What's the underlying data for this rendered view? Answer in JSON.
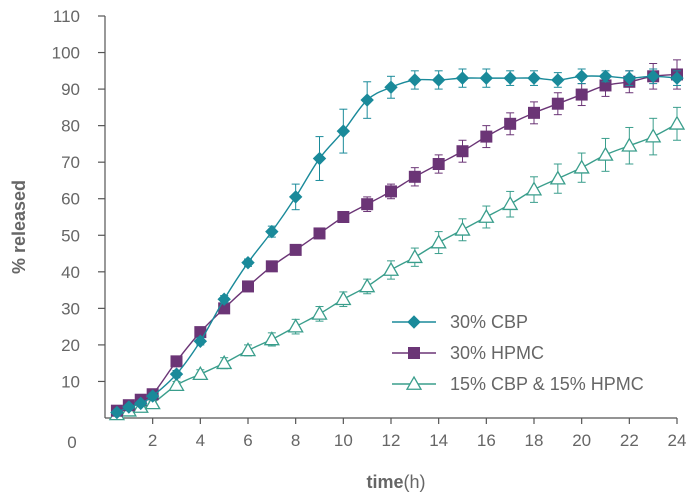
{
  "chart_data": {
    "type": "line",
    "xlabel_bold": "time",
    "xlabel_unit": "(h)",
    "ylabel": "% released",
    "xlim": [
      0,
      24
    ],
    "ylim": [
      0,
      110
    ],
    "x_ticks": [
      0,
      2,
      4,
      6,
      8,
      10,
      12,
      14,
      16,
      18,
      20,
      22,
      24
    ],
    "y_ticks": [
      10,
      20,
      30,
      40,
      50,
      60,
      70,
      80,
      90,
      100,
      110
    ],
    "grid": false,
    "legend_position": "lower-right",
    "series": [
      {
        "name": "30% CBP",
        "marker": "diamond",
        "color": "#1A8A9A",
        "points": [
          {
            "x": 0.5,
            "y": 1.5,
            "err": 0.5
          },
          {
            "x": 1,
            "y": 3,
            "err": 0.6
          },
          {
            "x": 1.5,
            "y": 4,
            "err": 0.6
          },
          {
            "x": 2,
            "y": 6,
            "err": 0.8
          },
          {
            "x": 3,
            "y": 12,
            "err": 1
          },
          {
            "x": 4,
            "y": 21,
            "err": 1
          },
          {
            "x": 5,
            "y": 32.5,
            "err": 1
          },
          {
            "x": 6,
            "y": 42.5,
            "err": 1
          },
          {
            "x": 7,
            "y": 51,
            "err": 1.5
          },
          {
            "x": 8,
            "y": 60.5,
            "err": 3.5
          },
          {
            "x": 9,
            "y": 71,
            "err": 6
          },
          {
            "x": 10,
            "y": 78.5,
            "err": 6
          },
          {
            "x": 11,
            "y": 87,
            "err": 5
          },
          {
            "x": 12,
            "y": 90.5,
            "err": 3
          },
          {
            "x": 13,
            "y": 92.5,
            "err": 2.5
          },
          {
            "x": 14,
            "y": 92.5,
            "err": 2.5
          },
          {
            "x": 15,
            "y": 93,
            "err": 2.5
          },
          {
            "x": 16,
            "y": 93,
            "err": 2.5
          },
          {
            "x": 17,
            "y": 93,
            "err": 2
          },
          {
            "x": 18,
            "y": 93,
            "err": 2
          },
          {
            "x": 19,
            "y": 92.5,
            "err": 2
          },
          {
            "x": 20,
            "y": 93.5,
            "err": 2
          },
          {
            "x": 21,
            "y": 93.5,
            "err": 1.5
          },
          {
            "x": 22,
            "y": 93,
            "err": 2
          },
          {
            "x": 23,
            "y": 93.5,
            "err": 2
          },
          {
            "x": 24,
            "y": 93,
            "err": 2
          }
        ]
      },
      {
        "name": "30% HPMC",
        "marker": "square",
        "color": "#6B3576",
        "points": [
          {
            "x": 0.5,
            "y": 2,
            "err": 0.5
          },
          {
            "x": 1,
            "y": 3.5,
            "err": 0.6
          },
          {
            "x": 1.5,
            "y": 5,
            "err": 0.8
          },
          {
            "x": 2,
            "y": 6.5,
            "err": 1
          },
          {
            "x": 3,
            "y": 15.5,
            "err": 1
          },
          {
            "x": 4,
            "y": 23.5,
            "err": 1
          },
          {
            "x": 5,
            "y": 30,
            "err": 1
          },
          {
            "x": 6,
            "y": 36,
            "err": 1
          },
          {
            "x": 7,
            "y": 41.5,
            "err": 1
          },
          {
            "x": 8,
            "y": 46,
            "err": 1
          },
          {
            "x": 9,
            "y": 50.5,
            "err": 1
          },
          {
            "x": 10,
            "y": 55,
            "err": 1.5
          },
          {
            "x": 11,
            "y": 58.5,
            "err": 2
          },
          {
            "x": 12,
            "y": 62,
            "err": 2
          },
          {
            "x": 13,
            "y": 66,
            "err": 2.5
          },
          {
            "x": 14,
            "y": 69.5,
            "err": 2.5
          },
          {
            "x": 15,
            "y": 73,
            "err": 3
          },
          {
            "x": 16,
            "y": 77,
            "err": 3
          },
          {
            "x": 17,
            "y": 80.5,
            "err": 3
          },
          {
            "x": 18,
            "y": 83.5,
            "err": 3
          },
          {
            "x": 19,
            "y": 86,
            "err": 3
          },
          {
            "x": 20,
            "y": 88.5,
            "err": 3
          },
          {
            "x": 21,
            "y": 91,
            "err": 3
          },
          {
            "x": 22,
            "y": 92,
            "err": 3
          },
          {
            "x": 23,
            "y": 93.5,
            "err": 3.5
          },
          {
            "x": 24,
            "y": 94,
            "err": 4
          }
        ]
      },
      {
        "name": "15% CBP & 15% HPMC",
        "marker": "triangle-open",
        "color": "#3A9E8C",
        "points": [
          {
            "x": 0.5,
            "y": 1,
            "err": 0.5
          },
          {
            "x": 1,
            "y": 2,
            "err": 0.5
          },
          {
            "x": 1.5,
            "y": 3,
            "err": 0.6
          },
          {
            "x": 2,
            "y": 4,
            "err": 0.6
          },
          {
            "x": 3,
            "y": 9,
            "err": 1
          },
          {
            "x": 4,
            "y": 12,
            "err": 1.2
          },
          {
            "x": 5,
            "y": 15,
            "err": 1.5
          },
          {
            "x": 6,
            "y": 18.5,
            "err": 1.5
          },
          {
            "x": 7,
            "y": 21.5,
            "err": 1.8
          },
          {
            "x": 8,
            "y": 25,
            "err": 2
          },
          {
            "x": 9,
            "y": 28.5,
            "err": 2
          },
          {
            "x": 10,
            "y": 32.5,
            "err": 2
          },
          {
            "x": 11,
            "y": 36,
            "err": 2
          },
          {
            "x": 12,
            "y": 40.5,
            "err": 2.5
          },
          {
            "x": 13,
            "y": 44,
            "err": 2.5
          },
          {
            "x": 14,
            "y": 48,
            "err": 3
          },
          {
            "x": 15,
            "y": 51.5,
            "err": 3
          },
          {
            "x": 16,
            "y": 55,
            "err": 3
          },
          {
            "x": 17,
            "y": 58.5,
            "err": 3.5
          },
          {
            "x": 18,
            "y": 62.5,
            "err": 3.5
          },
          {
            "x": 19,
            "y": 65.5,
            "err": 4
          },
          {
            "x": 20,
            "y": 68.5,
            "err": 4
          },
          {
            "x": 21,
            "y": 72,
            "err": 4.5
          },
          {
            "x": 22,
            "y": 74.5,
            "err": 5
          },
          {
            "x": 23,
            "y": 77,
            "err": 5
          },
          {
            "x": 24,
            "y": 80.5,
            "err": 4.5
          }
        ]
      }
    ]
  }
}
